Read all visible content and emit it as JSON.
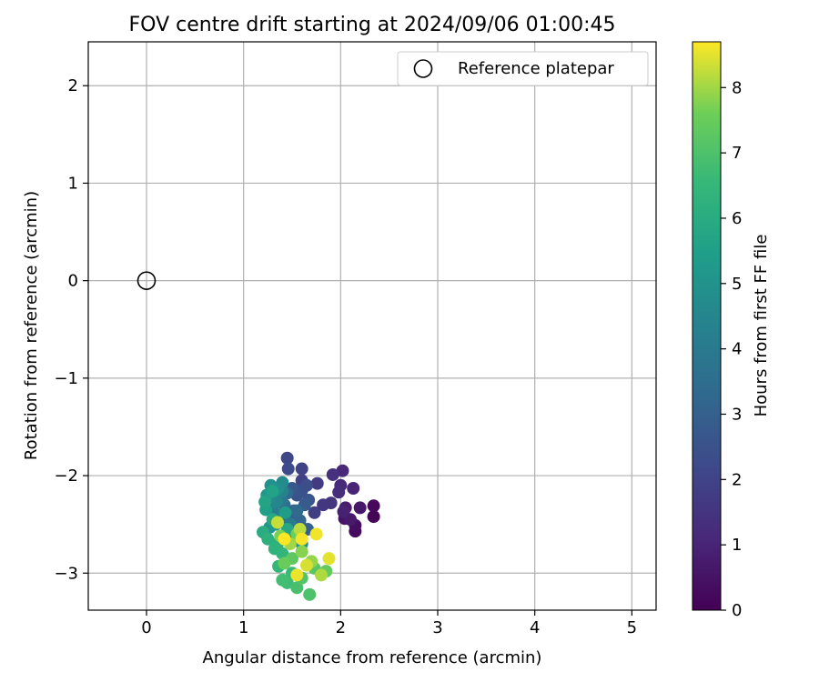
{
  "chart_data": {
    "type": "scatter",
    "title": "FOV centre drift starting at 2024/09/06 01:00:45",
    "xlabel": "Angular distance from reference (arcmin)",
    "ylabel": "Rotation from reference (arcmin)",
    "xlim": [
      -0.6,
      5.25
    ],
    "ylim": [
      -3.38,
      2.45
    ],
    "xticks": [
      0,
      1,
      2,
      3,
      4,
      5
    ],
    "yticks": [
      -3,
      -2,
      -1,
      0,
      1,
      2
    ],
    "xtick_labels": [
      "0",
      "1",
      "2",
      "3",
      "4",
      "5"
    ],
    "ytick_labels": [
      "−3",
      "−2",
      "−1",
      "0",
      "1",
      "2"
    ],
    "grid": true,
    "legend": {
      "position": "top-right",
      "entries": [
        "Reference platepar"
      ]
    },
    "reference_point": {
      "x": 0,
      "y": 0,
      "marker": "open-circle"
    },
    "colorbar": {
      "label": "Hours from first FF file",
      "min": 0,
      "max": 8.7,
      "ticks": [
        0,
        1,
        2,
        3,
        4,
        5,
        6,
        7,
        8
      ],
      "colormap": "viridis"
    },
    "series": [
      {
        "color_by": "hours",
        "points": [
          {
            "x": 2.34,
            "y": -2.42,
            "hours": 0.1
          },
          {
            "x": 2.34,
            "y": -2.31,
            "hours": 0.2
          },
          {
            "x": 2.15,
            "y": -2.57,
            "hours": 0.3
          },
          {
            "x": 2.15,
            "y": -2.51,
            "hours": 0.4
          },
          {
            "x": 2.04,
            "y": -2.44,
            "hours": 0.5
          },
          {
            "x": 2.2,
            "y": -2.33,
            "hours": 0.6
          },
          {
            "x": 2.1,
            "y": -2.45,
            "hours": 0.7
          },
          {
            "x": 2.05,
            "y": -2.33,
            "hours": 0.8
          },
          {
            "x": 2.03,
            "y": -2.37,
            "hours": 0.9
          },
          {
            "x": 2.13,
            "y": -2.13,
            "hours": 1.0
          },
          {
            "x": 2.02,
            "y": -1.95,
            "hours": 1.1
          },
          {
            "x": 2.0,
            "y": -2.1,
            "hours": 1.2
          },
          {
            "x": 1.98,
            "y": -2.17,
            "hours": 1.3
          },
          {
            "x": 1.92,
            "y": -1.99,
            "hours": 1.4
          },
          {
            "x": 1.9,
            "y": -2.28,
            "hours": 1.5
          },
          {
            "x": 1.82,
            "y": -2.3,
            "hours": 1.6
          },
          {
            "x": 1.76,
            "y": -2.08,
            "hours": 1.7
          },
          {
            "x": 1.73,
            "y": -2.38,
            "hours": 1.8
          },
          {
            "x": 1.6,
            "y": -2.05,
            "hours": 1.9
          },
          {
            "x": 1.6,
            "y": -1.93,
            "hours": 2.0
          },
          {
            "x": 1.45,
            "y": -1.82,
            "hours": 2.1
          },
          {
            "x": 1.46,
            "y": -1.93,
            "hours": 2.2
          },
          {
            "x": 1.65,
            "y": -2.1,
            "hours": 2.3
          },
          {
            "x": 1.6,
            "y": -2.15,
            "hours": 2.4
          },
          {
            "x": 1.55,
            "y": -2.2,
            "hours": 2.5
          },
          {
            "x": 1.67,
            "y": -2.25,
            "hours": 2.6
          },
          {
            "x": 1.5,
            "y": -2.13,
            "hours": 2.7
          },
          {
            "x": 1.63,
            "y": -2.3,
            "hours": 2.8
          },
          {
            "x": 1.52,
            "y": -2.36,
            "hours": 2.9
          },
          {
            "x": 1.66,
            "y": -2.55,
            "hours": 3.0
          },
          {
            "x": 1.47,
            "y": -2.43,
            "hours": 3.1
          },
          {
            "x": 1.58,
            "y": -2.46,
            "hours": 3.2
          },
          {
            "x": 1.45,
            "y": -2.18,
            "hours": 3.3
          },
          {
            "x": 1.55,
            "y": -2.36,
            "hours": 3.4
          },
          {
            "x": 1.42,
            "y": -2.3,
            "hours": 3.5
          },
          {
            "x": 1.44,
            "y": -2.48,
            "hours": 3.6
          },
          {
            "x": 1.35,
            "y": -2.2,
            "hours": 3.7
          },
          {
            "x": 1.3,
            "y": -2.32,
            "hours": 3.8
          },
          {
            "x": 1.39,
            "y": -2.25,
            "hours": 3.9
          },
          {
            "x": 1.48,
            "y": -2.5,
            "hours": 4.0
          },
          {
            "x": 1.34,
            "y": -2.4,
            "hours": 4.1
          },
          {
            "x": 1.52,
            "y": -2.6,
            "hours": 4.2
          },
          {
            "x": 1.28,
            "y": -2.3,
            "hours": 4.3
          },
          {
            "x": 1.4,
            "y": -2.16,
            "hours": 4.4
          },
          {
            "x": 1.34,
            "y": -2.27,
            "hours": 4.5
          },
          {
            "x": 1.27,
            "y": -2.23,
            "hours": 4.6
          },
          {
            "x": 1.4,
            "y": -2.07,
            "hours": 4.7
          },
          {
            "x": 1.35,
            "y": -2.14,
            "hours": 4.8
          },
          {
            "x": 1.28,
            "y": -2.1,
            "hours": 4.9
          },
          {
            "x": 1.6,
            "y": -2.7,
            "hours": 5.0
          },
          {
            "x": 1.27,
            "y": -2.53,
            "hours": 5.1
          },
          {
            "x": 1.24,
            "y": -2.2,
            "hours": 5.2
          },
          {
            "x": 1.33,
            "y": -2.5,
            "hours": 5.3
          },
          {
            "x": 1.43,
            "y": -2.38,
            "hours": 5.4
          },
          {
            "x": 1.23,
            "y": -2.35,
            "hours": 5.5
          },
          {
            "x": 1.3,
            "y": -2.16,
            "hours": 5.6
          },
          {
            "x": 1.22,
            "y": -2.27,
            "hours": 5.7
          },
          {
            "x": 1.45,
            "y": -2.55,
            "hours": 5.8
          },
          {
            "x": 1.3,
            "y": -2.45,
            "hours": 5.9
          },
          {
            "x": 1.2,
            "y": -2.58,
            "hours": 6.0
          },
          {
            "x": 1.35,
            "y": -2.7,
            "hours": 6.1
          },
          {
            "x": 1.25,
            "y": -2.65,
            "hours": 6.2
          },
          {
            "x": 1.32,
            "y": -2.75,
            "hours": 6.3
          },
          {
            "x": 1.4,
            "y": -2.8,
            "hours": 6.4
          },
          {
            "x": 1.36,
            "y": -2.93,
            "hours": 6.5
          },
          {
            "x": 1.5,
            "y": -3.0,
            "hours": 6.6
          },
          {
            "x": 1.45,
            "y": -3.1,
            "hours": 6.7
          },
          {
            "x": 1.4,
            "y": -3.07,
            "hours": 6.8
          },
          {
            "x": 1.55,
            "y": -3.15,
            "hours": 6.9
          },
          {
            "x": 1.68,
            "y": -3.22,
            "hours": 7.0
          },
          {
            "x": 1.6,
            "y": -3.05,
            "hours": 7.1
          },
          {
            "x": 1.73,
            "y": -2.95,
            "hours": 7.2
          },
          {
            "x": 1.5,
            "y": -2.85,
            "hours": 7.3
          },
          {
            "x": 1.85,
            "y": -2.98,
            "hours": 7.4
          },
          {
            "x": 1.42,
            "y": -2.9,
            "hours": 7.5
          },
          {
            "x": 1.55,
            "y": -2.6,
            "hours": 7.6
          },
          {
            "x": 1.38,
            "y": -2.62,
            "hours": 7.7
          },
          {
            "x": 1.6,
            "y": -2.78,
            "hours": 7.8
          },
          {
            "x": 1.7,
            "y": -2.88,
            "hours": 7.9
          },
          {
            "x": 1.48,
            "y": -2.7,
            "hours": 8.0
          },
          {
            "x": 1.8,
            "y": -3.02,
            "hours": 8.1
          },
          {
            "x": 1.58,
            "y": -2.55,
            "hours": 8.2
          },
          {
            "x": 1.35,
            "y": -2.48,
            "hours": 8.3
          },
          {
            "x": 1.65,
            "y": -2.92,
            "hours": 8.4
          },
          {
            "x": 1.88,
            "y": -2.85,
            "hours": 8.5
          },
          {
            "x": 1.55,
            "y": -3.02,
            "hours": 8.55
          },
          {
            "x": 1.75,
            "y": -2.6,
            "hours": 8.6
          },
          {
            "x": 1.6,
            "y": -2.65,
            "hours": 8.65
          },
          {
            "x": 1.42,
            "y": -2.65,
            "hours": 8.7
          }
        ]
      }
    ]
  }
}
